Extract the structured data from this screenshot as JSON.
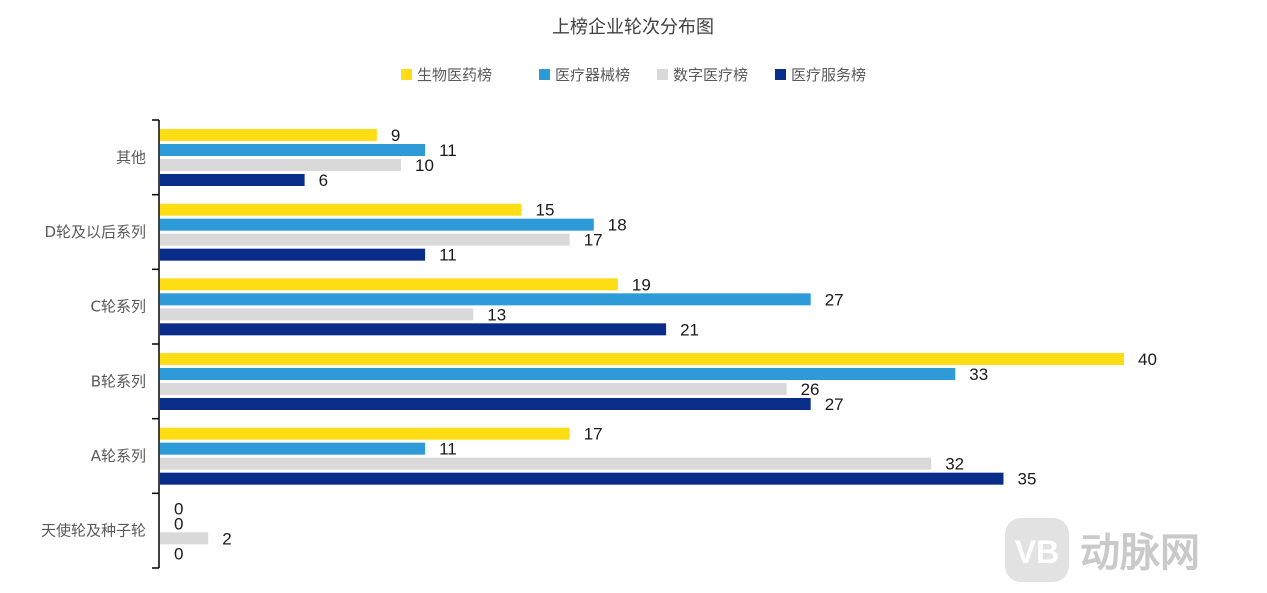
{
  "chart_data": {
    "type": "bar",
    "orientation": "horizontal",
    "title": "上榜企业轮次分布图",
    "categories": [
      "其他",
      "D轮及以后系列",
      "C轮系列",
      "B轮系列",
      "A轮系列",
      "天使轮及种子轮"
    ],
    "series": [
      {
        "name": "生物医药榜",
        "color": "#FFDD15",
        "values": [
          9,
          15,
          19,
          40,
          17,
          0
        ]
      },
      {
        "name": "医疗器械榜",
        "color": "#2E9AD8",
        "values": [
          11,
          18,
          27,
          33,
          11,
          0
        ]
      },
      {
        "name": "数字医疗榜",
        "color": "#D9D9D9",
        "values": [
          10,
          17,
          13,
          26,
          32,
          2
        ]
      },
      {
        "name": "医疗服务榜",
        "color": "#0B2D8A",
        "values": [
          6,
          11,
          21,
          27,
          35,
          0
        ]
      }
    ],
    "legend_position": "top",
    "grid": false,
    "xlim": [
      0,
      40
    ]
  },
  "watermark": {
    "text": "动脉网",
    "logo_text": "VB"
  }
}
